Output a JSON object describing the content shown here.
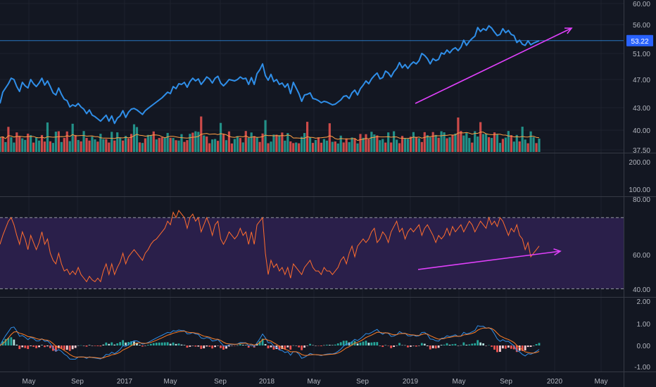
{
  "colors": {
    "background": "#131722",
    "grid": "#1e222d",
    "separator": "#363a45",
    "price_line": "#2f8ee8",
    "last_price_badge": "#2962ff",
    "trendline": "#e040fb",
    "volume_up": "#26a69a",
    "volume_down": "#ef5350",
    "volume_ma": "#ff9f45",
    "rsi_line": "#ff6d2e",
    "rsi_band": "#2a1f4a",
    "macd_line": "#2f8ee8",
    "signal_line": "#ff7f27"
  },
  "chart_data": [
    {
      "type": "line",
      "panel": "price",
      "y_ticks": [
        "60.00",
        "56.00",
        "51.00",
        "47.00",
        "43.00",
        "40.00",
        "37.50"
      ],
      "ylim": [
        37.5,
        60
      ],
      "last_price_label": "53.22",
      "last_price": 53.22,
      "series": [
        {
          "values": [
            43.6,
            45.2,
            45.8,
            46.4,
            47.2,
            47,
            46,
            45.3,
            46.6,
            46.1,
            45.8,
            47,
            46.4,
            46,
            46.5,
            47.2,
            46.2,
            46.8,
            46,
            45.1,
            44.8,
            45.8,
            44.9,
            44.2,
            44,
            43.1,
            43.4,
            43.2,
            43.6,
            43.1,
            42.8,
            42.2,
            42.7,
            42,
            41.8,
            41.5,
            41.2,
            41.6,
            42,
            41.2,
            41.9,
            40.9,
            41.6,
            41.9,
            42.6,
            41.7,
            42.4,
            42.8,
            42.9,
            42.7,
            42.4,
            42.1,
            42.6,
            42.9,
            43.2,
            43.5,
            43.8,
            44.1,
            44.4,
            44.8,
            45.2,
            45,
            46,
            45.7,
            46.4,
            46.3,
            46.6,
            45.9,
            46.7,
            47.2,
            46.8,
            47.1,
            46.3,
            46.8,
            47.4,
            47.1,
            46.5,
            47.2,
            47.5,
            46.5,
            46.1,
            46.5,
            47,
            46.9,
            46.8,
            47,
            47.4,
            47.1,
            47.2,
            46.3,
            47.3,
            46.3,
            47.9,
            48.5,
            49.4,
            47.6,
            46.9,
            47.8,
            46.7,
            47,
            46.3,
            46.5,
            45.9,
            46.4,
            45,
            46.6,
            45.8,
            45,
            43.9,
            44.8,
            44.9,
            45.1,
            44.3,
            44.2,
            44,
            43.7,
            43.9,
            43.8,
            43.6,
            43.4,
            43.5,
            43.8,
            44.1,
            44.6,
            44.7,
            44.3,
            45.1,
            45.5,
            44.8,
            45.7,
            46.2,
            46.8,
            46.4,
            47.1,
            47.6,
            48,
            47.1,
            47.3,
            48.3,
            48,
            47.4,
            48.2,
            48.7,
            49.6,
            48.8,
            49.3,
            48.7,
            49.3,
            49.7,
            49.4,
            49.9,
            51,
            50.7,
            50.2,
            49.4,
            50.2,
            49.9,
            50.1,
            51.1,
            50.9,
            51.6,
            51.1,
            51.7,
            52,
            51.5,
            52.1,
            53.3,
            52.4,
            53.1,
            53.6,
            54,
            55.5,
            54.8,
            55.3,
            55,
            55.8,
            55.4,
            54.7,
            54.1,
            54.3,
            55.3,
            54.6,
            55,
            54.3,
            54.1,
            52.9,
            53.3,
            52.6,
            52.4,
            53.2,
            52.5,
            52.8,
            53,
            53.2
          ],
          "note": "closing prices, one point per trading week"
        }
      ],
      "volume": {
        "up": [
          1,
          0,
          1,
          0,
          1,
          1,
          0,
          0,
          1,
          1,
          0,
          1,
          0,
          1,
          1,
          0,
          0,
          1,
          0,
          1,
          1,
          0,
          1,
          0,
          0,
          1,
          1,
          0,
          1,
          0,
          1,
          0,
          0,
          1,
          1,
          0,
          1,
          1,
          0,
          0,
          1,
          0,
          1,
          1,
          0,
          1,
          0,
          0,
          1,
          1,
          0,
          1,
          0,
          1,
          1,
          0,
          1,
          0,
          0,
          1,
          1,
          0,
          1,
          0,
          1,
          1,
          0,
          0,
          1,
          0,
          1,
          1,
          0,
          1,
          0,
          0,
          1,
          1,
          0,
          1,
          0,
          1,
          0,
          0,
          1,
          1,
          0,
          1,
          0,
          1,
          1,
          0,
          1,
          0,
          0,
          1,
          0,
          1,
          1,
          0,
          1,
          0,
          1,
          1,
          0,
          0,
          1,
          0,
          1,
          1,
          0,
          1,
          0,
          1,
          0,
          0,
          1,
          1,
          0,
          1,
          0,
          1,
          1,
          0,
          0,
          1,
          1,
          0,
          1,
          0,
          1,
          0,
          0,
          1,
          1,
          0,
          1,
          1,
          0,
          1,
          0,
          1,
          1,
          0,
          0,
          1,
          1,
          0,
          1,
          0,
          1,
          0,
          0,
          1,
          1,
          0,
          1,
          0,
          1,
          1,
          0,
          1,
          0,
          1,
          0,
          0,
          1,
          1,
          1,
          0,
          1,
          1,
          0,
          1,
          1,
          0,
          1,
          0,
          1,
          1,
          0,
          1,
          1,
          0,
          1,
          1,
          0,
          1,
          1,
          0,
          1
        ]
      },
      "trendline": [
        {
          "x": 0.6,
          "y": 44.2
        },
        {
          "x": 1.0,
          "y": 55.8
        }
      ]
    },
    {
      "type": "line",
      "panel": "volume_scale",
      "y_ticks": [
        "200.00",
        "100.00"
      ]
    },
    {
      "type": "line",
      "panel": "rsi",
      "y_ticks": [
        "80.00",
        "60.00",
        "40.00"
      ],
      "ylim": [
        27,
        80
      ],
      "band": [
        30,
        70
      ],
      "series": [
        {
          "values": [
            55,
            60,
            64,
            68,
            70,
            66,
            60,
            55,
            62,
            58,
            52,
            60,
            56,
            52,
            56,
            62,
            55,
            58,
            50,
            46,
            44,
            50,
            44,
            40,
            41,
            38,
            40,
            38,
            42,
            38,
            36,
            34,
            37,
            35,
            34,
            36,
            34,
            40,
            44,
            38,
            44,
            38,
            42,
            45,
            50,
            44,
            48,
            50,
            52,
            50,
            48,
            46,
            50,
            52,
            55,
            57,
            58,
            60,
            62,
            64,
            68,
            66,
            73,
            70,
            74,
            72,
            70,
            64,
            70,
            72,
            68,
            70,
            62,
            66,
            70,
            66,
            60,
            66,
            68,
            58,
            55,
            58,
            62,
            60,
            58,
            60,
            64,
            60,
            62,
            55,
            62,
            55,
            66,
            68,
            70,
            50,
            38,
            46,
            42,
            44,
            40,
            42,
            38,
            42,
            36,
            44,
            42,
            40,
            38,
            42,
            44,
            46,
            42,
            40,
            40,
            38,
            42,
            40,
            40,
            38,
            40,
            42,
            46,
            48,
            44,
            50,
            54,
            48,
            54,
            56,
            58,
            56,
            58,
            62,
            64,
            56,
            58,
            62,
            60,
            56,
            62,
            65,
            68,
            62,
            64,
            58,
            62,
            64,
            62,
            64,
            66,
            60,
            64,
            66,
            63,
            60,
            56,
            60,
            58,
            60,
            64,
            60,
            65,
            62,
            64,
            66,
            62,
            65,
            68,
            66,
            62,
            65,
            68,
            66,
            64,
            70,
            66,
            68,
            65,
            70,
            68,
            64,
            60,
            64,
            62,
            66,
            60,
            58,
            52,
            56,
            48,
            50,
            52,
            54
          ],
          "note": "RSI(14)"
        }
      ],
      "trendline": [
        {
          "x": 0.6,
          "y": 40
        },
        {
          "x": 1.0,
          "y": 51
        }
      ]
    },
    {
      "type": "line",
      "panel": "macd",
      "y_ticks": [
        "2.00",
        "1.00",
        "0.00",
        "-1.00"
      ],
      "ylim": [
        -1.1,
        2.1
      ],
      "x_ticks": [
        "May",
        "Sep",
        "2017",
        "May",
        "Sep",
        "2018",
        "May",
        "Sep",
        "2019",
        "May",
        "Sep",
        "2020",
        "May"
      ]
    }
  ]
}
